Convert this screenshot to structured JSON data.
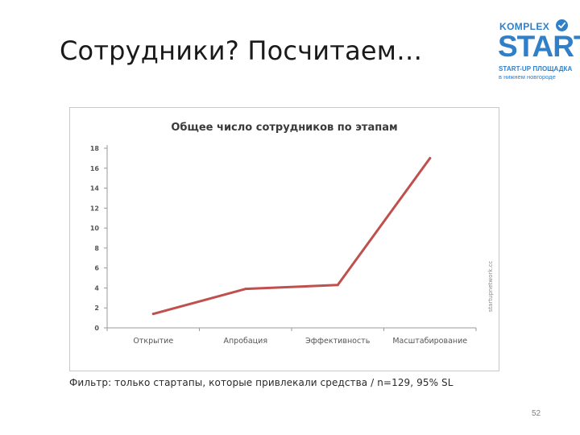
{
  "slide": {
    "title": "Сотрудники? Посчитаем…",
    "filter_note": "Фильтр: только стартапы, которые привлекали средства  / n=129, 95% SL",
    "page_number": "52"
  },
  "logo": {
    "komplex": "KOMPLEX",
    "start": "START",
    "tagline_line1": "START-UP ПЛОЩАДКА",
    "tagline_line2": "в нижнем новгороде",
    "badge_icon": "checkmark-icon",
    "color": "#2f7fc9"
  },
  "chart_data": {
    "type": "line",
    "title": "Общее число сотрудников по этапам",
    "categories": [
      "Открытие",
      "Апробация",
      "Эффективность",
      "Масштабирование"
    ],
    "series": [
      {
        "values": [
          1.4,
          3.9,
          4.3,
          17.0
        ],
        "color": "#c0504d"
      }
    ],
    "ylim": [
      0,
      18
    ],
    "yticks": [
      0,
      2,
      4,
      6,
      8,
      10,
      12,
      14,
      16,
      18
    ],
    "xlabel": "",
    "ylabel": "",
    "grid": false,
    "legend": "none",
    "watermark": "startupnetwork.cc"
  }
}
